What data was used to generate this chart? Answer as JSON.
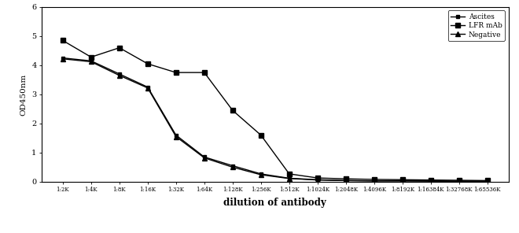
{
  "x_labels": [
    "1:2K",
    "1:4K",
    "1:8K",
    "1:16K",
    "1:32K",
    "1:64K",
    "1:128K",
    "1:256K",
    "1:512K",
    "1:1024K",
    "1:2048K",
    "1:4096K",
    "1:8192K",
    "1:16384K",
    "1:32768K",
    "1:65536K"
  ],
  "ascites": [
    4.25,
    4.15,
    3.7,
    3.25,
    1.6,
    0.85,
    0.55,
    0.27,
    0.12,
    0.07,
    0.04,
    0.03,
    0.03,
    0.03,
    0.02,
    0.02
  ],
  "lfr_mab": [
    4.85,
    4.28,
    4.6,
    4.05,
    3.75,
    3.75,
    2.45,
    1.6,
    0.27,
    0.13,
    0.1,
    0.08,
    0.07,
    0.06,
    0.05,
    0.04
  ],
  "negative": [
    4.22,
    4.12,
    3.65,
    3.22,
    1.55,
    0.82,
    0.5,
    0.24,
    0.11,
    0.06,
    0.04,
    0.03,
    0.03,
    0.02,
    0.02,
    0.02
  ],
  "ylabel": "OD450nm",
  "xlabel": "dilution of antibody",
  "ylim": [
    0,
    6
  ],
  "yticks": [
    0,
    1,
    2,
    3,
    4,
    5,
    6
  ],
  "legend_labels": [
    "Ascites",
    "LFR mAb",
    "Negative"
  ],
  "line_color": "#000000",
  "figsize": [
    6.6,
    2.96
  ],
  "dpi": 100
}
